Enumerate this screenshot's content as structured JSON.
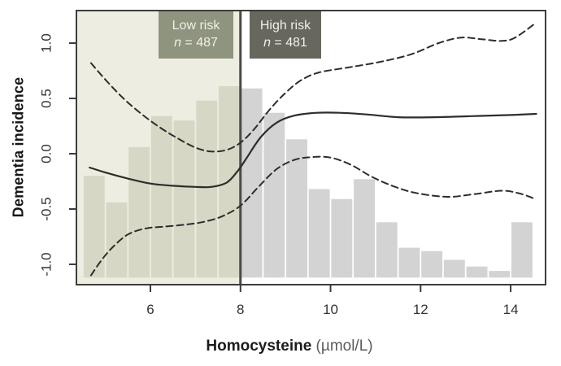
{
  "figure": {
    "background": "#ffffff",
    "frame_color": "#3d3d3b",
    "tick_color": "#3a3a38",
    "tick_label_color": "#333330"
  },
  "axes": {
    "y_title": "Dementia incidence",
    "x_title_bold": "Homocysteine",
    "x_title_unit": " (µmol/L)",
    "x_range": [
      4.357,
      14.775
    ],
    "y_range": [
      -1.184,
      1.294
    ],
    "x_ticks": [
      6,
      8,
      10,
      12,
      14
    ],
    "x_tick_labels": [
      "6",
      "8",
      "10",
      "12",
      "14"
    ],
    "y_ticks": [
      1.0,
      0.5,
      0.0,
      -0.5,
      -1.0
    ],
    "y_tick_labels": [
      "1.0",
      "0.5",
      "0.0",
      "-0.5",
      "-1.0"
    ]
  },
  "annotations": {
    "divider_x": 8,
    "divider_color": "#4a4a48",
    "region_fill": "#edeee1",
    "low_risk": {
      "title": "Low risk",
      "n_italic": "n",
      "n_text": " = 487",
      "box_color": "#8f947f",
      "text_color": "#f1f0e7"
    },
    "high_risk": {
      "title": "High risk",
      "n_italic": "n",
      "n_text": " = 481",
      "box_color": "#67675e",
      "text_color": "#f1f0e7"
    }
  },
  "chart_data": {
    "type": "line",
    "title": "",
    "xlabel": "Homocysteine (µmol/L)",
    "ylabel": "Dementia incidence",
    "xlim": [
      4.36,
      14.78
    ],
    "ylim": [
      -1.18,
      1.29
    ],
    "grid": false,
    "legend": "none",
    "groups": [
      {
        "label": "Low risk",
        "n": 487,
        "x_max": 8
      },
      {
        "label": "High risk",
        "n": 481,
        "x_min": 8
      }
    ],
    "histogram": {
      "bin_start": 4.5,
      "bin_width": 0.5,
      "base": -1.12,
      "tops": [
        -0.2,
        -0.44,
        0.06,
        0.34,
        0.3,
        0.48,
        0.61,
        0.59,
        0.37,
        0.13,
        -0.32,
        -0.41,
        -0.23,
        -0.62,
        -0.85,
        -0.88,
        -0.96,
        -1.02,
        -1.06,
        -0.62
      ],
      "fill_low": "#d6d7c5",
      "fill_high": "#d3d3d3"
    },
    "series": [
      {
        "name": "fit-line",
        "style": "solid",
        "color": "#2d2d2b",
        "width": 2.2,
        "points": [
          [
            4.65,
            -0.125
          ],
          [
            5.0,
            -0.17
          ],
          [
            5.5,
            -0.225
          ],
          [
            6.0,
            -0.27
          ],
          [
            6.5,
            -0.29
          ],
          [
            7.0,
            -0.3
          ],
          [
            7.35,
            -0.3
          ],
          [
            7.7,
            -0.26
          ],
          [
            7.95,
            -0.15
          ],
          [
            8.15,
            -0.03
          ],
          [
            8.45,
            0.15
          ],
          [
            8.8,
            0.28
          ],
          [
            9.2,
            0.345
          ],
          [
            9.7,
            0.37
          ],
          [
            10.2,
            0.37
          ],
          [
            10.8,
            0.355
          ],
          [
            11.5,
            0.33
          ],
          [
            12.3,
            0.33
          ],
          [
            13.2,
            0.34
          ],
          [
            14.0,
            0.35
          ],
          [
            14.57,
            0.36
          ]
        ]
      },
      {
        "name": "ci-upper",
        "style": "dashed",
        "color": "#2d2d2b",
        "width": 2,
        "points": [
          [
            4.68,
            0.82
          ],
          [
            5.0,
            0.67
          ],
          [
            5.4,
            0.5
          ],
          [
            5.8,
            0.36
          ],
          [
            6.2,
            0.24
          ],
          [
            6.6,
            0.14
          ],
          [
            7.0,
            0.055
          ],
          [
            7.35,
            0.02
          ],
          [
            7.7,
            0.035
          ],
          [
            8.0,
            0.1
          ],
          [
            8.3,
            0.22
          ],
          [
            8.65,
            0.4
          ],
          [
            9.0,
            0.55
          ],
          [
            9.35,
            0.665
          ],
          [
            9.75,
            0.735
          ],
          [
            10.4,
            0.78
          ],
          [
            11.1,
            0.83
          ],
          [
            11.8,
            0.9
          ],
          [
            12.4,
            1.0
          ],
          [
            12.9,
            1.05
          ],
          [
            13.35,
            1.035
          ],
          [
            13.8,
            1.02
          ],
          [
            14.1,
            1.05
          ],
          [
            14.55,
            1.18
          ]
        ]
      },
      {
        "name": "ci-lower",
        "style": "dashed",
        "color": "#2d2d2b",
        "width": 2,
        "points": [
          [
            4.68,
            -1.1
          ],
          [
            4.9,
            -0.97
          ],
          [
            5.15,
            -0.85
          ],
          [
            5.5,
            -0.73
          ],
          [
            5.9,
            -0.675
          ],
          [
            6.3,
            -0.66
          ],
          [
            6.8,
            -0.64
          ],
          [
            7.2,
            -0.615
          ],
          [
            7.6,
            -0.565
          ],
          [
            8.0,
            -0.47
          ],
          [
            8.4,
            -0.3
          ],
          [
            8.8,
            -0.14
          ],
          [
            9.2,
            -0.055
          ],
          [
            9.6,
            -0.03
          ],
          [
            10.0,
            -0.035
          ],
          [
            10.45,
            -0.1
          ],
          [
            10.9,
            -0.205
          ],
          [
            11.4,
            -0.295
          ],
          [
            11.9,
            -0.355
          ],
          [
            12.6,
            -0.39
          ],
          [
            13.2,
            -0.365
          ],
          [
            13.8,
            -0.335
          ],
          [
            14.2,
            -0.36
          ],
          [
            14.55,
            -0.41
          ]
        ]
      }
    ]
  }
}
